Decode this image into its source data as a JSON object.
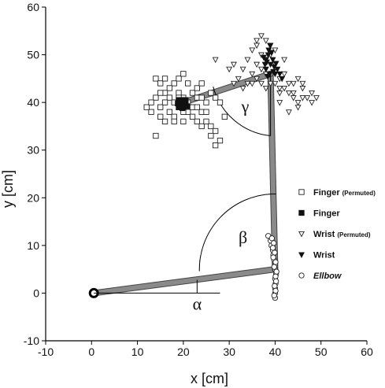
{
  "chart_data": {
    "type": "scatter",
    "xlabel": "x [cm]",
    "ylabel": "y [cm]",
    "xlim": [
      -10,
      60
    ],
    "ylim": [
      -10,
      60
    ],
    "xticks": [
      -10,
      0,
      10,
      20,
      30,
      40,
      50,
      60
    ],
    "yticks": [
      -10,
      0,
      10,
      20,
      30,
      40,
      50,
      60
    ],
    "legend_position": "right",
    "arm": {
      "shoulder": [
        0.5,
        0
      ],
      "elbow": [
        40,
        5
      ],
      "wrist": [
        39,
        46
      ],
      "finger": [
        20,
        40
      ],
      "color": "#8a8a8a"
    },
    "angles": [
      {
        "label": "α",
        "vertex": [
          0.5,
          0
        ],
        "label_at": [
          23,
          -3.5
        ]
      },
      {
        "label": "β",
        "vertex": [
          40,
          5
        ],
        "label_at": [
          33,
          10.5
        ]
      },
      {
        "label": "γ",
        "vertex": [
          39,
          46
        ],
        "label_at": [
          33.5,
          38
        ]
      }
    ],
    "series": [
      {
        "name": "Finger",
        "name_suffix": "(Permuted)",
        "marker": "square-open",
        "points": [
          [
            14,
            45
          ],
          [
            15,
            44
          ],
          [
            16,
            42
          ],
          [
            14,
            41
          ],
          [
            15,
            39
          ],
          [
            17,
            38
          ],
          [
            18,
            37
          ],
          [
            16,
            36
          ],
          [
            13,
            38
          ],
          [
            12,
            39
          ],
          [
            18,
            44
          ],
          [
            19,
            45
          ],
          [
            20,
            46
          ],
          [
            17,
            41
          ],
          [
            18,
            40
          ],
          [
            19,
            39
          ],
          [
            21,
            38
          ],
          [
            22,
            37
          ],
          [
            23,
            36
          ],
          [
            24,
            35
          ],
          [
            25,
            36
          ],
          [
            26,
            35
          ],
          [
            27,
            34
          ],
          [
            26,
            33
          ],
          [
            28,
            32
          ],
          [
            27,
            31
          ],
          [
            22,
            42
          ],
          [
            23,
            43
          ],
          [
            24,
            44
          ],
          [
            21,
            44
          ],
          [
            16,
            40
          ],
          [
            19,
            42
          ],
          [
            20,
            41
          ],
          [
            22,
            39
          ],
          [
            24,
            38
          ],
          [
            25,
            40
          ],
          [
            27,
            41
          ],
          [
            28,
            40
          ],
          [
            26,
            42
          ],
          [
            23,
            41
          ],
          [
            17,
            43
          ],
          [
            15,
            37
          ],
          [
            14,
            33
          ],
          [
            13,
            40
          ],
          [
            18,
            36
          ],
          [
            20,
            36
          ],
          [
            21,
            40
          ],
          [
            23,
            39
          ],
          [
            25,
            38
          ],
          [
            29,
            37
          ],
          [
            19,
            41
          ],
          [
            20,
            38
          ],
          [
            24,
            41
          ],
          [
            15,
            42
          ],
          [
            16,
            45
          ]
        ]
      },
      {
        "name": "Finger",
        "marker": "square-filled",
        "points": [
          [
            19,
            39
          ],
          [
            19.5,
            39.5
          ],
          [
            20,
            40
          ],
          [
            19.5,
            40.5
          ],
          [
            20.5,
            39.5
          ],
          [
            19,
            40
          ],
          [
            20,
            39
          ],
          [
            20.5,
            40.5
          ],
          [
            19.5,
            39
          ],
          [
            20,
            40.5
          ],
          [
            19,
            40.5
          ],
          [
            20.5,
            40
          ],
          [
            18.8,
            39.8
          ],
          [
            19.8,
            38.8
          ],
          [
            20.8,
            39.2
          ]
        ]
      },
      {
        "name": "Wrist",
        "name_suffix": "(Permuted)",
        "marker": "triangle-open",
        "points": [
          [
            35,
            51
          ],
          [
            36,
            52
          ],
          [
            37,
            50
          ],
          [
            34,
            49
          ],
          [
            36,
            48
          ],
          [
            33,
            47
          ],
          [
            35,
            46
          ],
          [
            38,
            53
          ],
          [
            39,
            52
          ],
          [
            38,
            49
          ],
          [
            37,
            47
          ],
          [
            39,
            44
          ],
          [
            41,
            45
          ],
          [
            42,
            43
          ],
          [
            43,
            42
          ],
          [
            44,
            41
          ],
          [
            45,
            40
          ],
          [
            42,
            46
          ],
          [
            44,
            44
          ],
          [
            46,
            43
          ],
          [
            47,
            41
          ],
          [
            48,
            42
          ],
          [
            45,
            39
          ],
          [
            43,
            38
          ],
          [
            41,
            42
          ],
          [
            40,
            48
          ],
          [
            42,
            49
          ],
          [
            40,
            51
          ],
          [
            31,
            44
          ],
          [
            32,
            45
          ],
          [
            33,
            43
          ],
          [
            36,
            45
          ],
          [
            37,
            44
          ],
          [
            34,
            44
          ],
          [
            38,
            46
          ],
          [
            40,
            44
          ],
          [
            43,
            44
          ],
          [
            41,
            40
          ],
          [
            44,
            42
          ],
          [
            46,
            41
          ],
          [
            48,
            40
          ],
          [
            49,
            41
          ],
          [
            27,
            49
          ],
          [
            30,
            47
          ],
          [
            31,
            48
          ],
          [
            36,
            53
          ],
          [
            37,
            54
          ],
          [
            39,
            50
          ],
          [
            45,
            45
          ],
          [
            46,
            44
          ],
          [
            38,
            43
          ],
          [
            35,
            44
          ],
          [
            41,
            43
          ]
        ]
      },
      {
        "name": "Wrist",
        "marker": "triangle-filled",
        "points": [
          [
            38,
            49
          ],
          [
            38.5,
            50
          ],
          [
            39,
            48
          ],
          [
            38,
            47
          ],
          [
            38.8,
            46
          ],
          [
            39.5,
            49
          ],
          [
            38.2,
            48.5
          ],
          [
            39.2,
            50.5
          ],
          [
            38.6,
            51
          ],
          [
            39.8,
            47.5
          ],
          [
            40.2,
            48.2
          ],
          [
            38.4,
            45.5
          ],
          [
            39.6,
            46.5
          ],
          [
            40.5,
            47
          ],
          [
            37.8,
            48
          ],
          [
            40,
            46
          ],
          [
            37.5,
            49.5
          ],
          [
            38.9,
            52
          ],
          [
            41,
            46
          ],
          [
            41.5,
            45
          ]
        ]
      },
      {
        "name": "Ellbow",
        "marker": "circle-open",
        "points": [
          [
            38.5,
            12
          ],
          [
            39,
            11
          ],
          [
            39.2,
            10
          ],
          [
            39.5,
            9
          ],
          [
            39.6,
            8
          ],
          [
            39.8,
            7
          ],
          [
            40,
            6
          ],
          [
            40,
            5
          ],
          [
            40.2,
            4
          ],
          [
            40,
            3
          ],
          [
            40.1,
            2
          ],
          [
            40,
            1
          ],
          [
            40,
            0
          ],
          [
            40,
            -1
          ],
          [
            39.7,
            10.5
          ],
          [
            39.9,
            8.5
          ],
          [
            40.1,
            6.5
          ],
          [
            39.8,
            5.5
          ],
          [
            40.3,
            4.5
          ],
          [
            40.1,
            3.5
          ],
          [
            40.2,
            2.5
          ],
          [
            39.9,
            1.5
          ],
          [
            40.1,
            0.5
          ],
          [
            39.8,
            -0.5
          ],
          [
            39.3,
            11.5
          ],
          [
            39.5,
            9.5
          ],
          [
            39.6,
            7.5
          ]
        ]
      }
    ]
  }
}
